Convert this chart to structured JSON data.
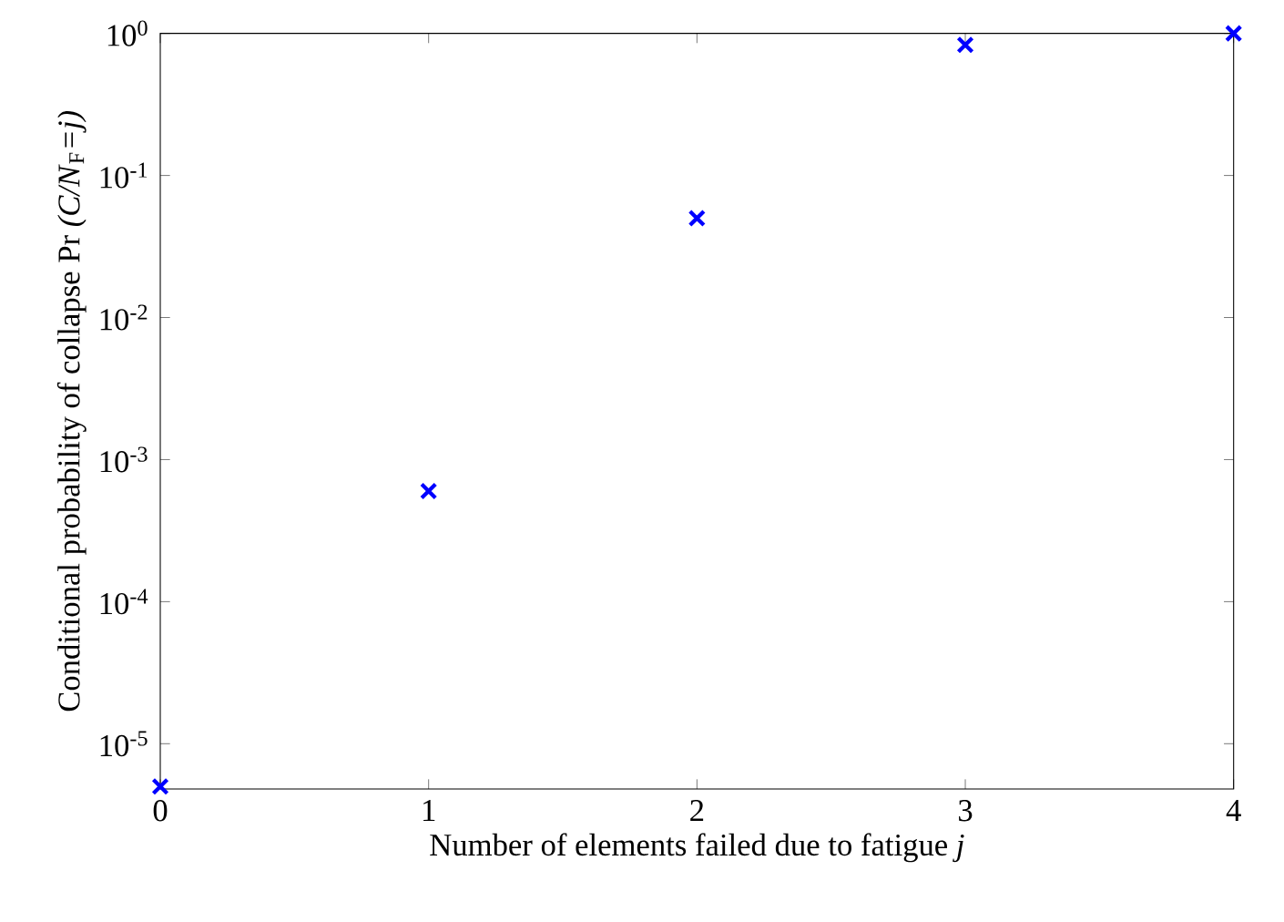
{
  "chart_data": {
    "type": "scatter",
    "xlabel": "Number of elements failed due to fatigue *j*",
    "ylabel": "Conditional probability of collapse Pr *(C/N*$_{F}$*=j)*",
    "x": [
      0,
      1,
      2,
      3,
      4
    ],
    "series": [
      {
        "color": "#0000ff",
        "values": [
          5e-06,
          0.0006,
          0.05,
          0.83,
          1
        ]
      }
    ],
    "marker": "cross",
    "log": "y",
    "grid": false,
    "xlim": [
      0,
      4
    ],
    "xticks": [
      0,
      1,
      2,
      3,
      4
    ],
    "ylim": [
      4.8e-06,
      1
    ],
    "yticks": [
      {
        "value": 1e-05,
        "label": "10$^{-5}$"
      },
      {
        "value": 0.0001,
        "label": "10$^{-4}$"
      },
      {
        "value": 0.001,
        "label": "10$^{-3}$"
      },
      {
        "value": 0.01,
        "label": "10$^{-2}$"
      },
      {
        "value": 0.1,
        "label": "10$^{-1}$"
      },
      {
        "value": 1,
        "label": "10$^{0}$"
      }
    ]
  }
}
